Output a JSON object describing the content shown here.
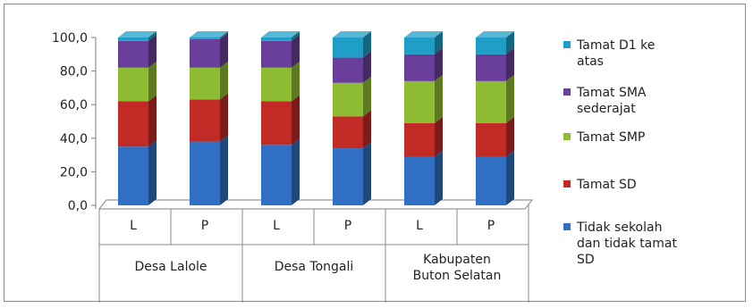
{
  "chart_data": {
    "type": "bar",
    "stacked": true,
    "three_d": true,
    "title": "",
    "xlabel": "",
    "ylabel": "",
    "ylim": [
      0,
      100
    ],
    "yticks": [
      "0,0",
      "20,0",
      "40,0",
      "60,0",
      "80,0",
      "100,0"
    ],
    "ytick_values": [
      0,
      20,
      40,
      60,
      80,
      100
    ],
    "grid": false,
    "legend_position": "right",
    "groups": [
      {
        "label": "Desa Lalole",
        "categories": [
          "L",
          "P"
        ]
      },
      {
        "label": "Desa Tongali",
        "categories": [
          "L",
          "P"
        ]
      },
      {
        "label": "Kabupaten Buton Selatan",
        "categories": [
          "L",
          "P"
        ]
      }
    ],
    "categories": [
      "L",
      "P",
      "L",
      "P",
      "L",
      "P"
    ],
    "series": [
      {
        "name": "Tidak sekolah dan tidak tamat SD",
        "color": "#2f6fc4",
        "values": [
          35,
          38,
          36,
          34,
          29,
          29
        ]
      },
      {
        "name": "Tamat SD",
        "color": "#c22a26",
        "values": [
          27,
          25,
          26,
          19,
          20,
          20
        ]
      },
      {
        "name": "Tamat SMP",
        "color": "#8dbb31",
        "values": [
          20,
          19,
          20,
          20,
          25,
          25
        ]
      },
      {
        "name": "Tamat SMA sederajat",
        "color": "#6a3f9b",
        "values": [
          16,
          17,
          16,
          15,
          16,
          16
        ]
      },
      {
        "name": "Tamat D1 ke atas",
        "color": "#1f9fc7",
        "values": [
          2,
          1,
          2,
          12,
          10,
          10
        ]
      }
    ],
    "legend": [
      {
        "lines": [
          "Tamat D1 ke",
          "atas"
        ],
        "color": "#1f9fc7"
      },
      {
        "lines": [
          "Tamat SMA",
          "sederajat"
        ],
        "color": "#6a3f9b"
      },
      {
        "lines": [
          "Tamat SMP"
        ],
        "color": "#8dbb31"
      },
      {
        "lines": [
          "Tamat SD"
        ],
        "color": "#c22a26"
      },
      {
        "lines": [
          "Tidak sekolah",
          "dan tidak tamat",
          "SD"
        ],
        "color": "#2f6fc4"
      }
    ]
  }
}
